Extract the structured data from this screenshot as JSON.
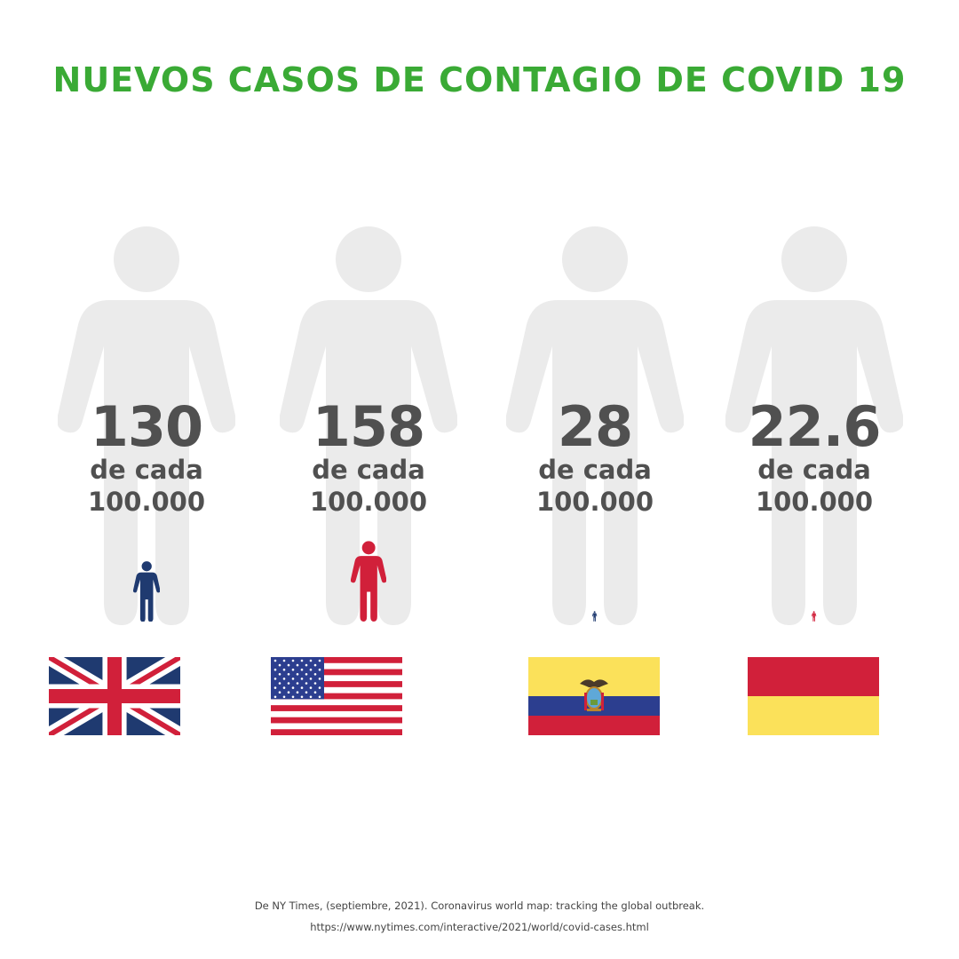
{
  "title": "NUEVOS CASOS DE CONTAGIO DE COVID 19",
  "unit_line1": "de cada",
  "unit_line2": "100.000",
  "colors": {
    "title": "#3aaa35",
    "big_figure": "#ebebeb",
    "text": "#505050",
    "navy": "#1f3a70",
    "red": "#d1203a",
    "yellow": "#fbe15a"
  },
  "chart_data": {
    "type": "bar",
    "title": "NUEVOS CASOS DE CONTAGIO DE COVID 19",
    "categories": [
      "Reino Unido",
      "Estados Unidos",
      "Ecuador",
      "España"
    ],
    "values": [
      130,
      158,
      28,
      22.6
    ],
    "value_labels": [
      "130",
      "158",
      "28",
      "22.6"
    ],
    "unit": "de cada 100.000",
    "figure_colors": [
      "#1f3a70",
      "#d1203a",
      "#1f3a70",
      "#d1203a"
    ],
    "flags": [
      "uk-flag",
      "us-flag",
      "ecuador-flag",
      "spain-flag"
    ]
  },
  "source": {
    "line1": "De NY Times, (septiembre, 2021). Coronavirus world map: tracking the  global outbreak.",
    "line2": "https://www.nytimes.com/interactive/2021/world/covid-cases.html"
  }
}
